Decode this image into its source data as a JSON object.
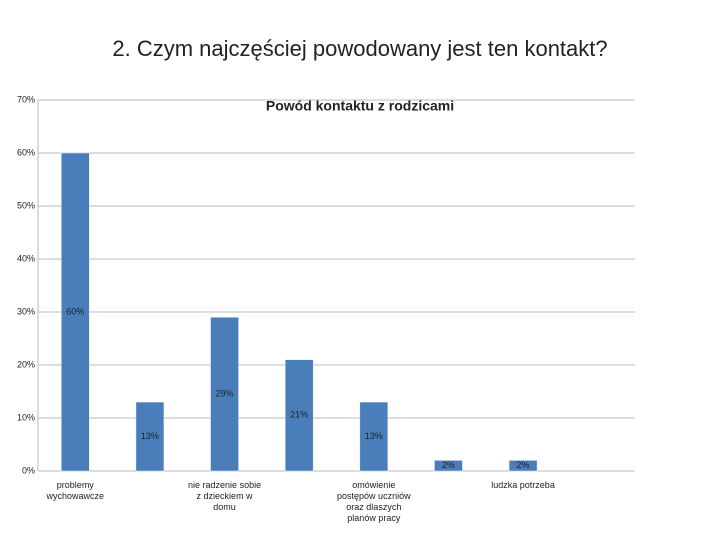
{
  "slide_title": "2. Czym najczęściej powodowany jest ten kontakt?",
  "chart_data": {
    "type": "bar",
    "title": "Powód kontaktu z rodzicami",
    "categories": [
      "problemy wychowawcze",
      null,
      "nie radzenie sobie z dzieckiem w domu",
      null,
      "omówienie postępów uczniów oraz dlaszych planów pracy",
      null,
      "ludzka potrzeba",
      null
    ],
    "values": [
      60,
      13,
      29,
      21,
      13,
      2,
      2,
      null
    ],
    "value_labels": [
      "60%",
      "13%",
      "29%",
      "21%",
      "13%",
      "2%",
      "2%",
      null
    ],
    "color": "#4a7ebb",
    "ylim": [
      0,
      70
    ],
    "yticks": [
      {
        "value": 0,
        "label": "0%"
      },
      {
        "value": 10,
        "label": "10%"
      },
      {
        "value": 20,
        "label": "20%"
      },
      {
        "value": 30,
        "label": "30%"
      },
      {
        "value": 40,
        "label": "40%"
      },
      {
        "value": 50,
        "label": "50%"
      },
      {
        "value": 60,
        "label": "60%"
      },
      {
        "value": 70,
        "label": "70%"
      }
    ],
    "grid": true
  }
}
